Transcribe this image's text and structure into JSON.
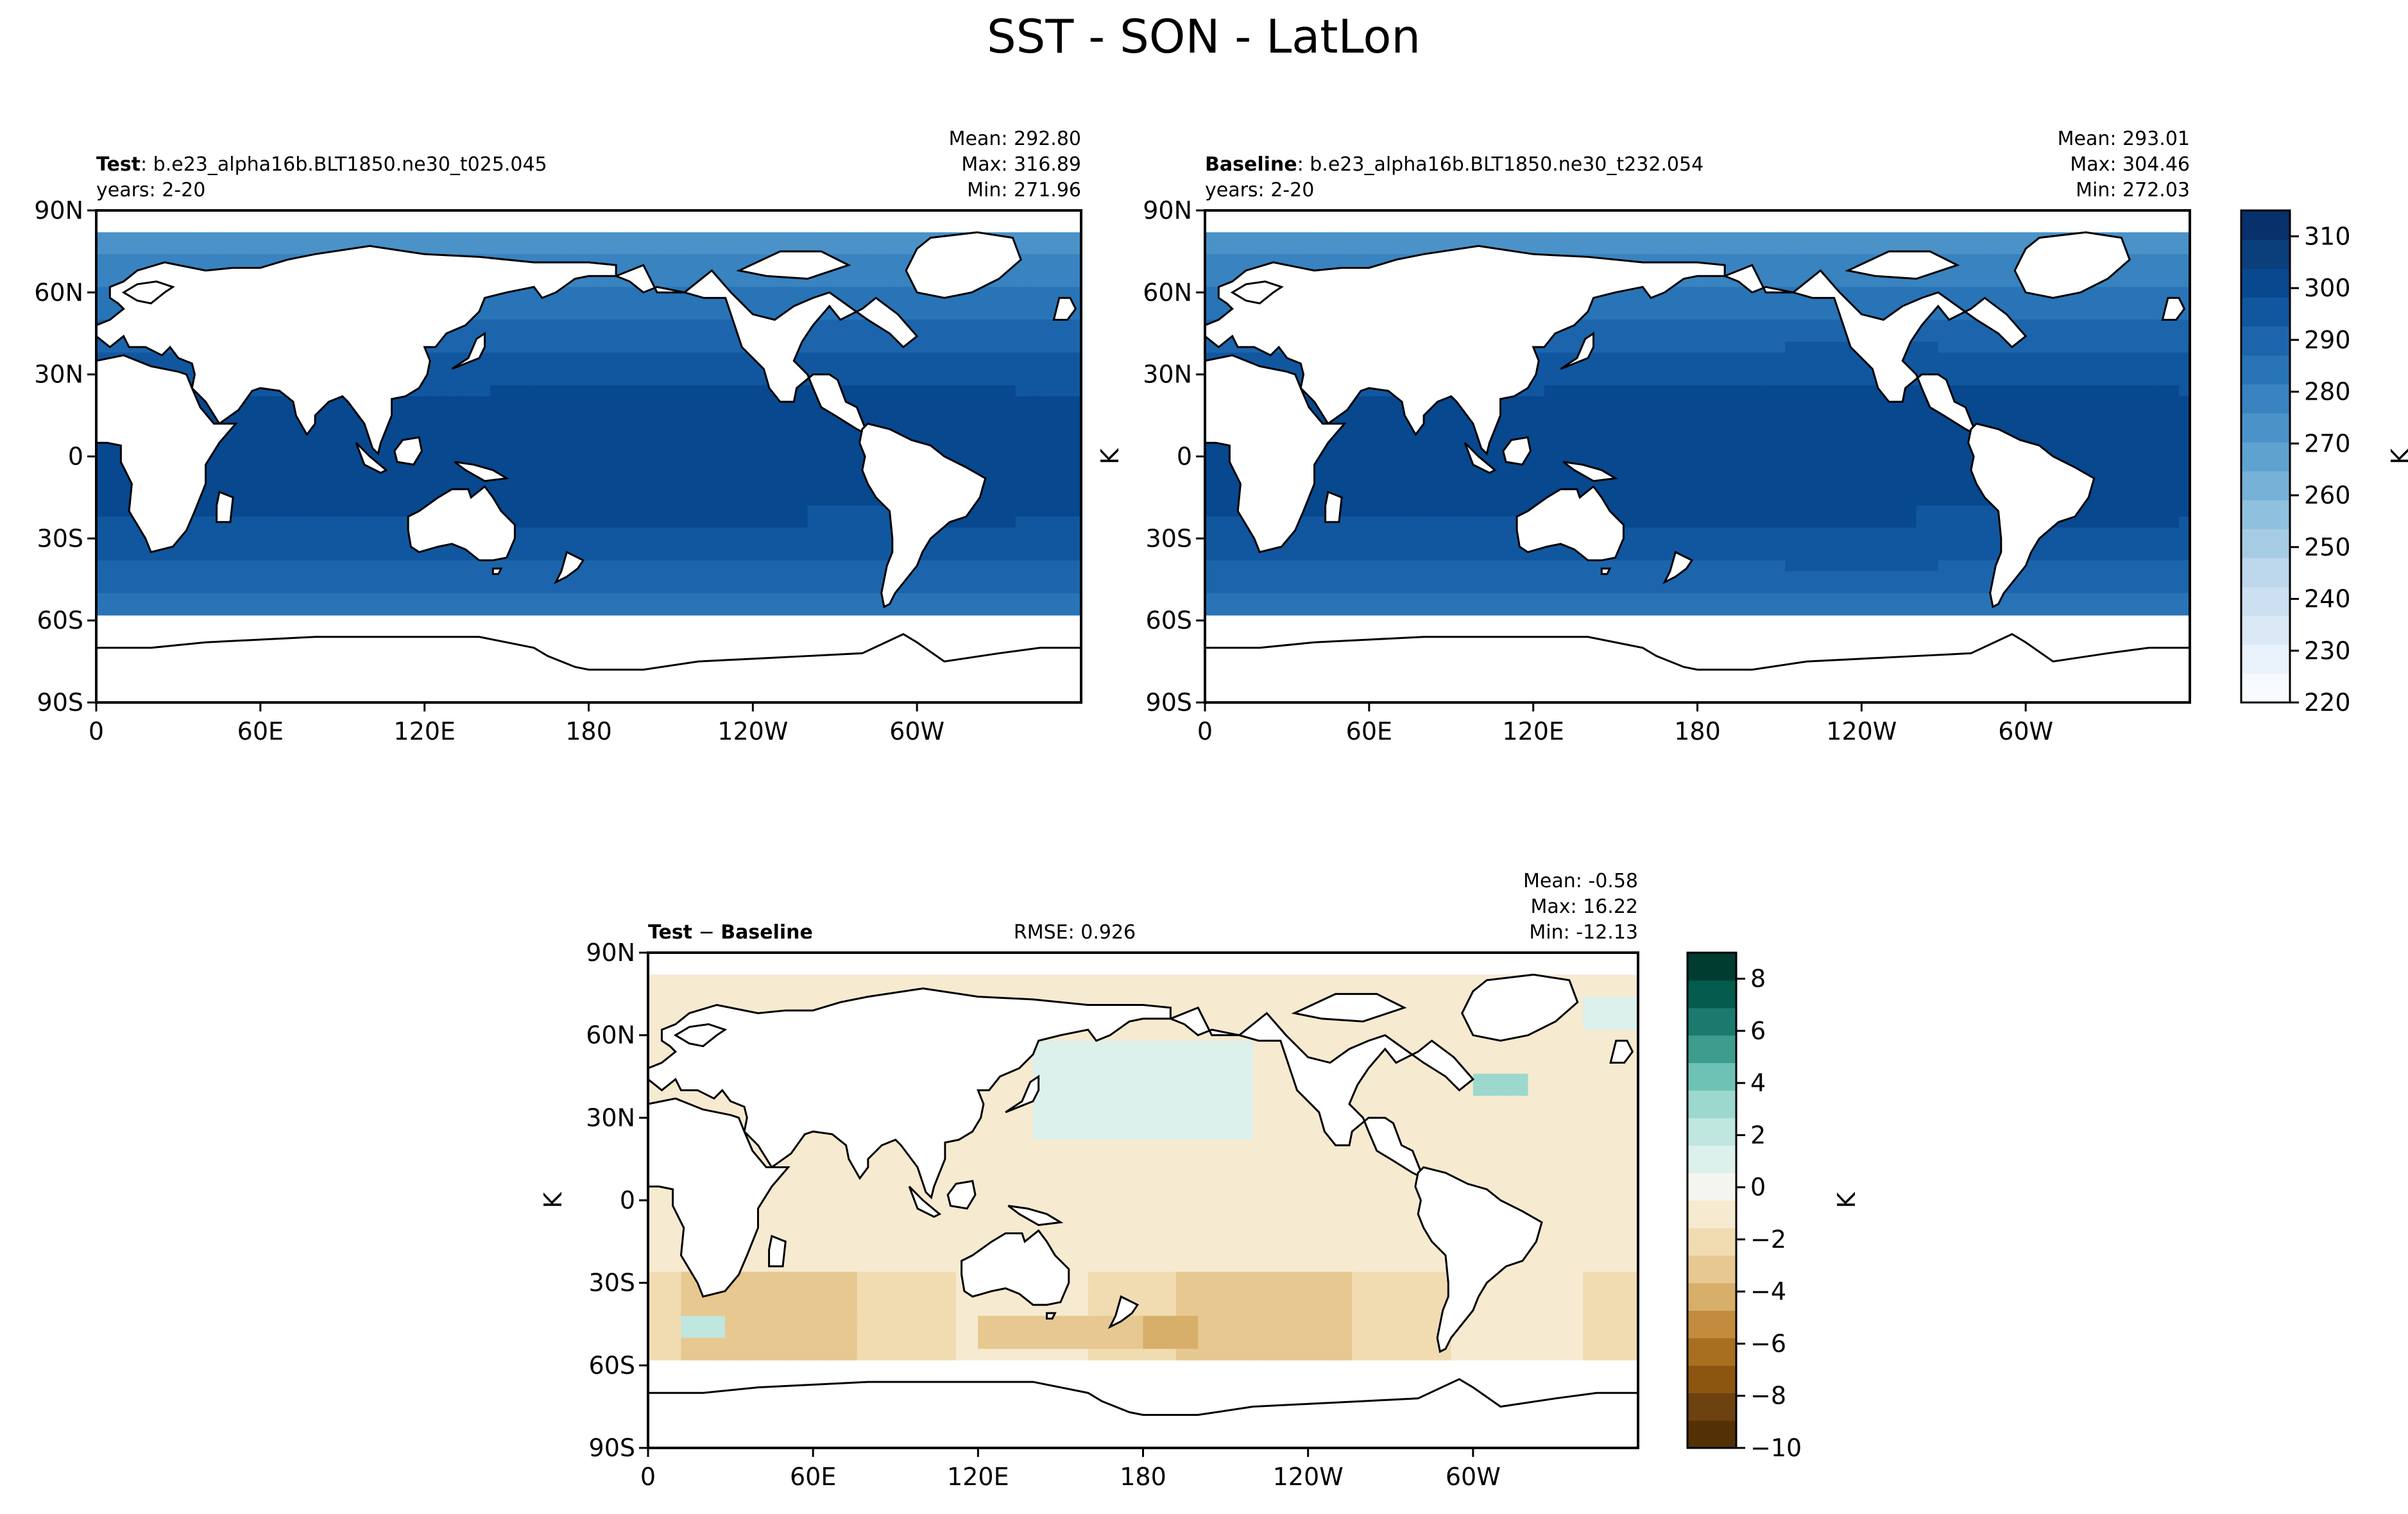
{
  "figure": {
    "title": "SST - SON - LatLon"
  },
  "colors": {
    "sst_ramp": [
      "#f7fbff",
      "#e9f2fb",
      "#dbe9f6",
      "#cde0f1",
      "#bdd7ec",
      "#a6cce4",
      "#8fc1de",
      "#76b1d8",
      "#5ea2d0",
      "#4a92c8",
      "#3883c0",
      "#2874b7",
      "#1c65ac",
      "#11579f",
      "#08488f",
      "#0a3f7c",
      "#08306b"
    ],
    "diff_ramp": [
      "#543005",
      "#6d4110",
      "#8c5510",
      "#a96f21",
      "#c38b3d",
      "#d8ae6b",
      "#e6c890",
      "#f1dcb2",
      "#f6ead0",
      "#f5f5f0",
      "#dcf0ec",
      "#bfe6df",
      "#9cd8cd",
      "#6ec2b5",
      "#3d9c8d",
      "#1b7a6d",
      "#035c4e",
      "#003c30"
    ],
    "land": "#ffffff"
  },
  "chart_data": [
    {
      "type": "heatmap",
      "panel": "test",
      "label_bold": "Test",
      "label_rest": ": b.e23_alpha16b.BLT1850.ne30_t025.045",
      "years": "years: 2-20",
      "stats": {
        "mean": "Mean: 292.80",
        "max": "Max: 316.89",
        "min": "Min: 271.96"
      },
      "x_ticks": [
        "0",
        "60E",
        "120E",
        "180",
        "120W",
        "60W"
      ],
      "y_ticks": [
        "90N",
        "60N",
        "30N",
        "0",
        "30S",
        "60S",
        "90S"
      ],
      "ylabel": "",
      "xlim": [
        0,
        360
      ],
      "ylim": [
        -90,
        90
      ],
      "sea_ice_edge_lat": -57,
      "arctic_edge_lat": 80
    },
    {
      "type": "heatmap",
      "panel": "baseline",
      "label_bold": "Baseline",
      "label_rest": ": b.e23_alpha16b.BLT1850.ne30_t232.054",
      "years": "years: 2-20",
      "stats": {
        "mean": "Mean: 293.01",
        "max": "Max: 304.46",
        "min": "Min: 272.03"
      },
      "x_ticks": [
        "0",
        "60E",
        "120E",
        "180",
        "120W",
        "60W"
      ],
      "y_ticks": [
        "90N",
        "60N",
        "30N",
        "0",
        "30S",
        "60S",
        "90S"
      ],
      "ylabel": "K",
      "xlim": [
        0,
        360
      ],
      "ylim": [
        -90,
        90
      ],
      "sea_ice_edge_lat": -58,
      "arctic_edge_lat": 80,
      "colorbar": {
        "ticks": [
          "310",
          "300",
          "290",
          "280",
          "270",
          "260",
          "250",
          "240",
          "230",
          "220"
        ],
        "values": [
          310,
          300,
          290,
          280,
          270,
          260,
          250,
          240,
          230,
          220
        ],
        "range": [
          220,
          315
        ],
        "label": "K"
      }
    },
    {
      "type": "heatmap",
      "panel": "difference",
      "label_bold": "Test",
      "label_minus": "−",
      "label_bold2": "Baseline",
      "rmse": "RMSE: 0.926",
      "stats": {
        "mean": "Mean: -0.58",
        "max": "Max: 16.22",
        "min": "Min: -12.13"
      },
      "x_ticks": [
        "0",
        "60E",
        "120E",
        "180",
        "120W",
        "60W"
      ],
      "y_ticks": [
        "90N",
        "60N",
        "30N",
        "0",
        "30S",
        "60S",
        "90S"
      ],
      "ylabel": "K",
      "xlim": [
        0,
        360
      ],
      "ylim": [
        -90,
        90
      ],
      "colorbar": {
        "ticks": [
          "8",
          "6",
          "4",
          "2",
          "0",
          "−2",
          "−4",
          "−6",
          "−8",
          "−10"
        ],
        "values": [
          8,
          6,
          4,
          2,
          0,
          -2,
          -4,
          -6,
          -8,
          -10
        ],
        "range": [
          -10,
          9
        ],
        "label": "K"
      }
    }
  ]
}
